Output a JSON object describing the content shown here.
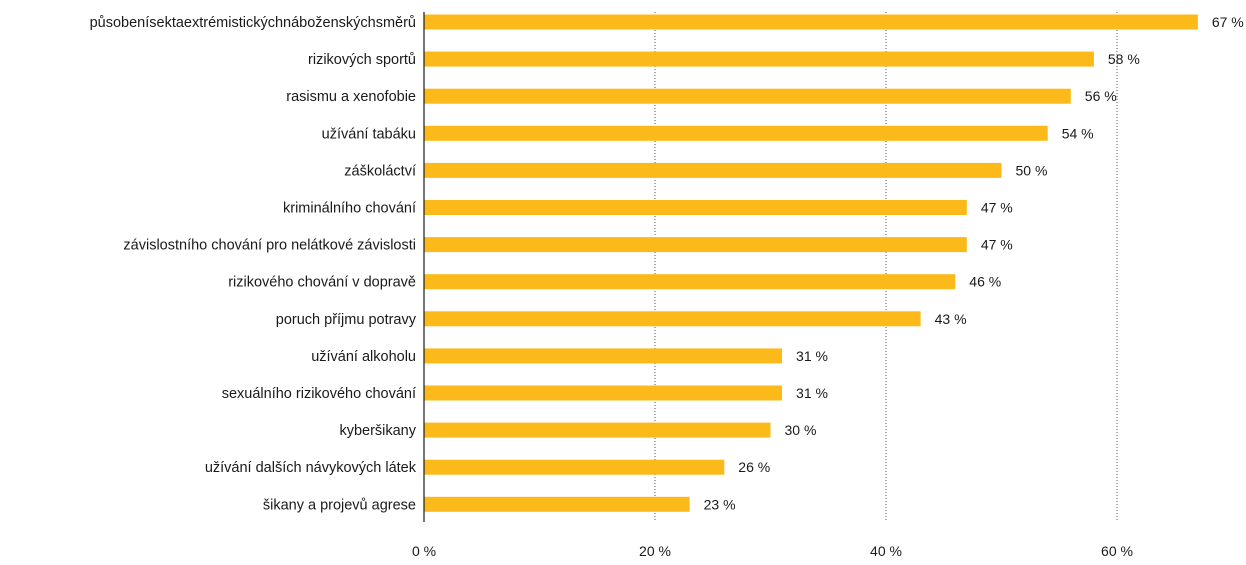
{
  "chart_data": {
    "type": "bar",
    "orientation": "horizontal",
    "title": "",
    "xlabel": "",
    "ylabel": "",
    "categories": [
      "působenísektaextrémistickýchnáboženskýchsměrů",
      "rizikových sportů",
      "rasismu a xenofobie",
      "užívání tabáku",
      "záškoláctví",
      "kriminálního chování",
      "závislostního chování pro nelátkové závislosti",
      "rizikového chování v dopravě",
      "poruch příjmu potravy",
      "užívání alkoholu",
      "sexuálního rizikového chování",
      "kyberšikany",
      "užívání dalších návykových látek",
      "šikany a projevů agrese"
    ],
    "values": [
      67,
      58,
      56,
      54,
      50,
      47,
      47,
      46,
      43,
      31,
      31,
      30,
      26,
      23
    ],
    "value_labels": [
      "67 %",
      "58 %",
      "56 %",
      "54 %",
      "50 %",
      "47 %",
      "47 %",
      "46 %",
      "43 %",
      "31 %",
      "31 %",
      "30 %",
      "26 %",
      "23 %"
    ],
    "xlim": [
      0,
      60
    ],
    "x_ticks": [
      0,
      20,
      40,
      60
    ],
    "x_tick_labels": [
      "0 %",
      "20 %",
      "40 %",
      "60 %"
    ],
    "grid": "vertical dotted",
    "bar_color": "#FBBA1A",
    "axis_color": "#1a1a1a",
    "grid_color": "#555555"
  }
}
